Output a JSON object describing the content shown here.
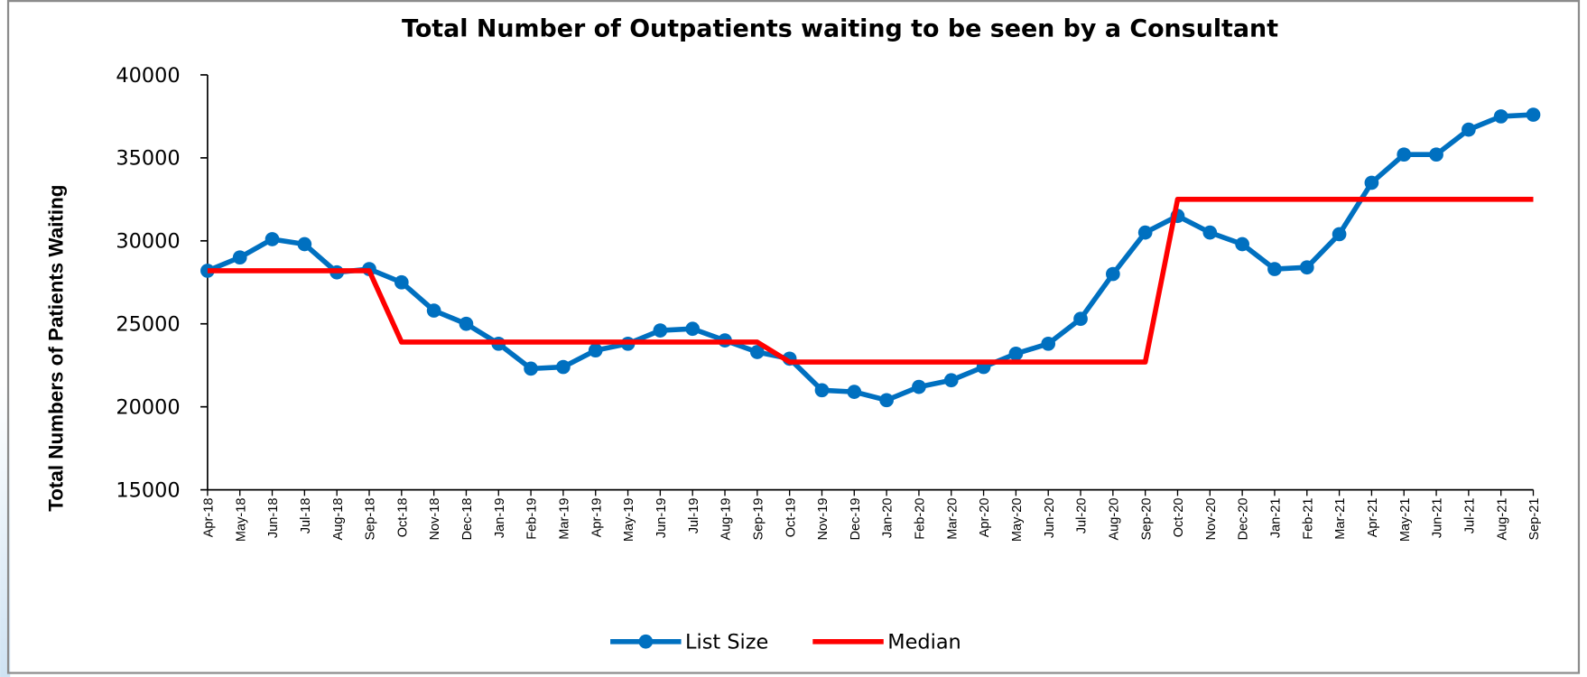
{
  "chart_data": {
    "type": "line",
    "title": "Total Number of Outpatients waiting to be seen by a Consultant",
    "y_label": "Total Numbers of Patients Waiting",
    "categories": [
      "Apr-18",
      "May-18",
      "Jun-18",
      "Jul-18",
      "Aug-18",
      "Sep-18",
      "Oct-18",
      "Nov-18",
      "Dec-18",
      "Jan-19",
      "Feb-19",
      "Mar-19",
      "Apr-19",
      "May-19",
      "Jun-19",
      "Jul-19",
      "Aug-19",
      "Sep-19",
      "Oct-19",
      "Nov-19",
      "Dec-19",
      "Jan-20",
      "Feb-20",
      "Mar-20",
      "Apr-20",
      "May-20",
      "Jun-20",
      "Jul-20",
      "Aug-20",
      "Sep-20",
      "Oct-20",
      "Nov-20",
      "Dec-20",
      "Jan-21",
      "Feb-21",
      "Mar-21",
      "Apr-21",
      "May-21",
      "Jun-21",
      "Jul-21",
      "Aug-21",
      "Sep-21"
    ],
    "series": [
      {
        "name": "List Size",
        "color": "#0070c0",
        "marker": true,
        "values": [
          28200,
          29000,
          30100,
          29800,
          28100,
          28300,
          27500,
          25800,
          25000,
          23800,
          22300,
          22400,
          23400,
          23800,
          24600,
          24700,
          24000,
          23300,
          22900,
          21000,
          20900,
          20400,
          21200,
          21600,
          22400,
          23200,
          23800,
          25300,
          28000,
          30500,
          31500,
          30500,
          29800,
          28300,
          28400,
          30400,
          33500,
          35200,
          35200,
          36700,
          37500,
          37600
        ]
      },
      {
        "name": "Median",
        "color": "#ff0000",
        "marker": false,
        "values": [
          28200,
          28200,
          28200,
          28200,
          28200,
          28200,
          23900,
          23900,
          23900,
          23900,
          23900,
          23900,
          23900,
          23900,
          23900,
          23900,
          23900,
          23900,
          22700,
          22700,
          22700,
          22700,
          22700,
          22700,
          22700,
          22700,
          22700,
          22700,
          22700,
          22700,
          32500,
          32500,
          32500,
          32500,
          32500,
          32500,
          32500,
          32500,
          32500,
          32500,
          32500,
          32500
        ]
      }
    ],
    "ylim": [
      15000,
      40000
    ],
    "yticks": [
      15000,
      20000,
      25000,
      30000,
      35000,
      40000
    ],
    "grid": false,
    "legend": "bottom"
  }
}
